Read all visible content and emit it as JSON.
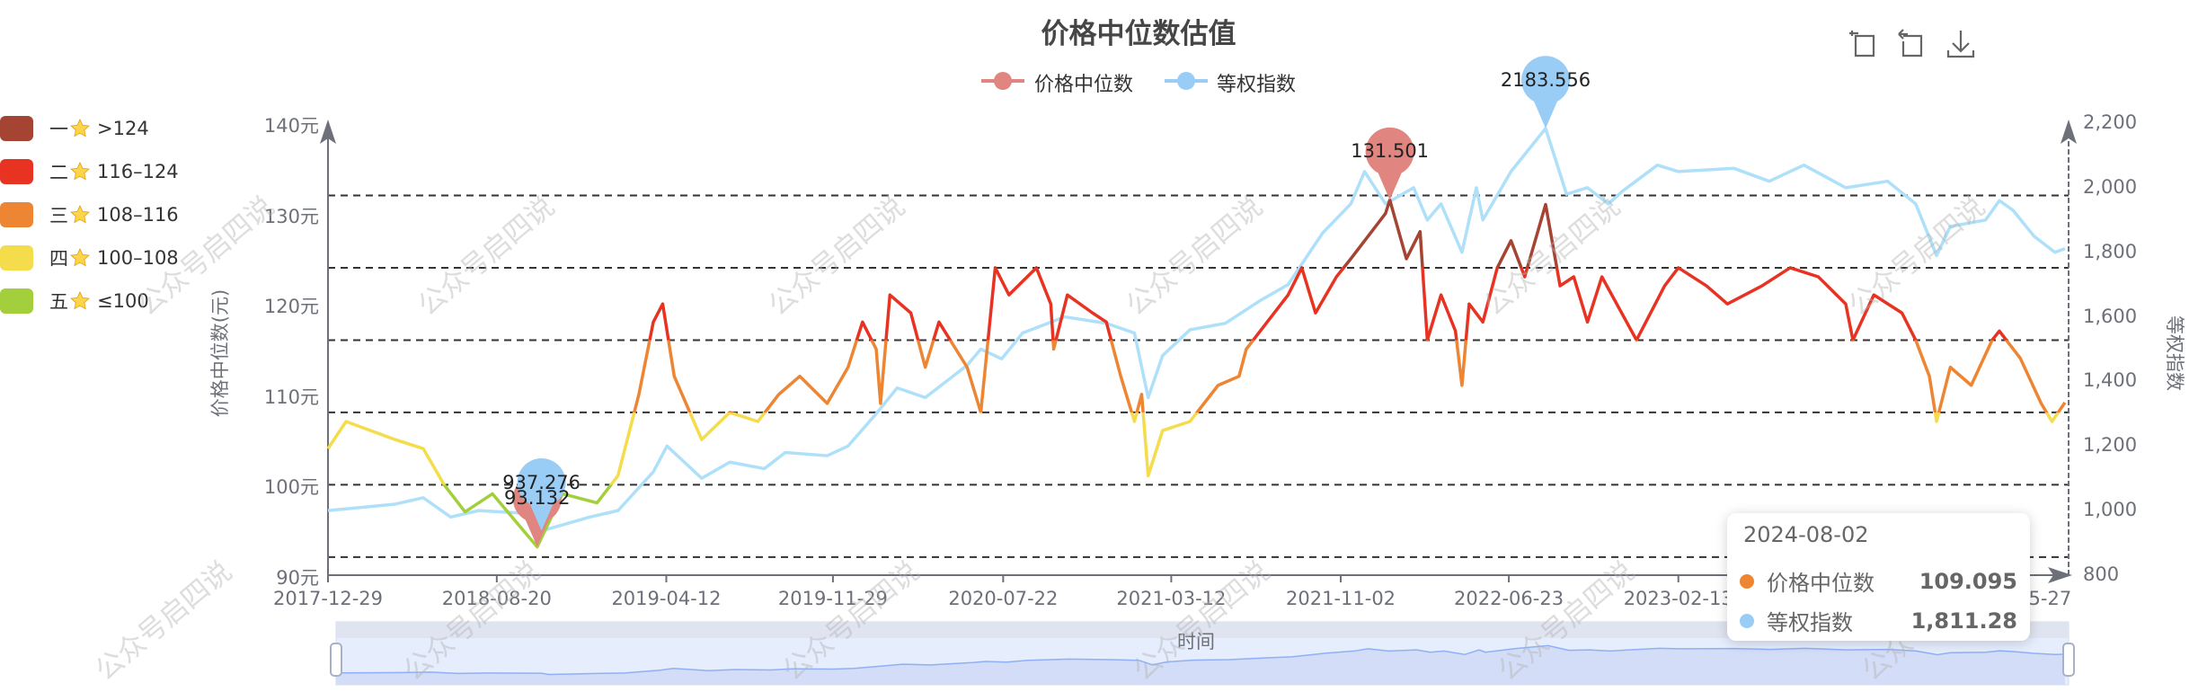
{
  "title": "价格中位数估值",
  "legend": [
    {
      "name": "价格中位数",
      "color": "#e0857f"
    },
    {
      "name": "等权指数",
      "color": "#9acdf5"
    }
  ],
  "toolbox": [
    {
      "icon": "data-zoom-icon"
    },
    {
      "icon": "zoom-reset-icon"
    },
    {
      "icon": "download-icon"
    }
  ],
  "visual_map": [
    {
      "rank": "一",
      "range": ">124",
      "color": "#a54432"
    },
    {
      "rank": "二",
      "range": "116–124",
      "color": "#e83323"
    },
    {
      "rank": "三",
      "range": "108–116",
      "color": "#ed8532"
    },
    {
      "rank": "四",
      "range": "100–108",
      "color": "#f5dc4a"
    },
    {
      "rank": "五",
      "range": "≤100",
      "color": "#a3cf3c"
    }
  ],
  "watermark": "公众号启四说",
  "datazoom": {
    "label": "时间",
    "start_percent": 0,
    "end_percent": 100
  },
  "tooltip": {
    "date": "2024-08-02",
    "rows": [
      {
        "name": "价格中位数",
        "value": "109.095",
        "color": "#ed8532"
      },
      {
        "name": "等权指数",
        "value": "1,811.28",
        "color": "#9acdf5"
      }
    ]
  },
  "chart_data": {
    "type": "line",
    "title": "价格中位数估值",
    "xlabel": "时间",
    "ylabel_left": "价格中位数(元)",
    "ylabel_right": "等权指数",
    "x_ticks": [
      "2017-12-29",
      "2018-08-20",
      "2019-04-12",
      "2019-11-29",
      "2020-07-22",
      "2021-03-12",
      "2021-11-02",
      "2022-06-23",
      "2023-02-13",
      "2024-05-27"
    ],
    "xlim": [
      "2017-12-29",
      "2024-08-07"
    ],
    "y_left": {
      "ticks": [
        "90元",
        "100元",
        "110元",
        "120元",
        "130元",
        "140元"
      ],
      "range": [
        90,
        140
      ]
    },
    "y_right": {
      "ticks": [
        "800",
        "1,000",
        "1,200",
        "1,400",
        "1,600",
        "1,800",
        "2,000",
        "2,200"
      ],
      "range": [
        800,
        2200
      ]
    },
    "reference_lines": [
      132,
      124,
      116,
      108,
      100,
      92
    ],
    "grid": false,
    "legend_position": "top",
    "series": [
      {
        "name": "价格中位数",
        "axis": "left",
        "points": [
          [
            "2017-12-29",
            104
          ],
          [
            "2018-01-23",
            107
          ],
          [
            "2018-04-01",
            105
          ],
          [
            "2018-05-10",
            104
          ],
          [
            "2018-06-08",
            100
          ],
          [
            "2018-07-07",
            97
          ],
          [
            "2018-08-14",
            99
          ],
          [
            "2018-10-15",
            93.132
          ],
          [
            "2018-11-19",
            99
          ],
          [
            "2019-01-06",
            98
          ],
          [
            "2019-02-04",
            101
          ],
          [
            "2019-03-05",
            110
          ],
          [
            "2019-03-25",
            118
          ],
          [
            "2019-04-07",
            120
          ],
          [
            "2019-04-23",
            112
          ],
          [
            "2019-05-31",
            105
          ],
          [
            "2019-07-09",
            108
          ],
          [
            "2019-08-17",
            107
          ],
          [
            "2019-09-15",
            110
          ],
          [
            "2019-10-14",
            112
          ],
          [
            "2019-11-21",
            109
          ],
          [
            "2019-12-20",
            113
          ],
          [
            "2020-01-09",
            118
          ],
          [
            "2020-01-28",
            115
          ],
          [
            "2020-02-03",
            109
          ],
          [
            "2020-02-16",
            121
          ],
          [
            "2020-03-16",
            119
          ],
          [
            "2020-04-05",
            113
          ],
          [
            "2020-04-24",
            118
          ],
          [
            "2020-06-02",
            113
          ],
          [
            "2020-06-21",
            108
          ],
          [
            "2020-07-11",
            124
          ],
          [
            "2020-07-30",
            121
          ],
          [
            "2020-09-06",
            124
          ],
          [
            "2020-09-26",
            120
          ],
          [
            "2020-09-30",
            115
          ],
          [
            "2020-10-19",
            121
          ],
          [
            "2020-11-23",
            119
          ],
          [
            "2020-12-12",
            118
          ],
          [
            "2021-01-01",
            112
          ],
          [
            "2021-01-20",
            107
          ],
          [
            "2021-01-30",
            110
          ],
          [
            "2021-02-08",
            101
          ],
          [
            "2021-02-28",
            106
          ],
          [
            "2021-04-07",
            107
          ],
          [
            "2021-05-16",
            111
          ],
          [
            "2021-06-14",
            112
          ],
          [
            "2021-06-24",
            115
          ],
          [
            "2021-07-23",
            118
          ],
          [
            "2021-08-21",
            121
          ],
          [
            "2021-09-09",
            124
          ],
          [
            "2021-09-28",
            119
          ],
          [
            "2021-10-27",
            123
          ],
          [
            "2021-11-16",
            125
          ],
          [
            "2022-01-03",
            130
          ],
          [
            "2022-01-09",
            131.501
          ],
          [
            "2022-02-01",
            125
          ],
          [
            "2022-02-20",
            128
          ],
          [
            "2022-03-02",
            116
          ],
          [
            "2022-03-21",
            121
          ],
          [
            "2022-04-10",
            117
          ],
          [
            "2022-04-19",
            111
          ],
          [
            "2022-04-29",
            120
          ],
          [
            "2022-05-18",
            118
          ],
          [
            "2022-06-07",
            124
          ],
          [
            "2022-06-26",
            127
          ],
          [
            "2022-07-15",
            123
          ],
          [
            "2022-08-13",
            131
          ],
          [
            "2022-09-02",
            122
          ],
          [
            "2022-09-21",
            123
          ],
          [
            "2022-10-10",
            118
          ],
          [
            "2022-10-30",
            123
          ],
          [
            "2022-12-17",
            116
          ],
          [
            "2023-01-25",
            122
          ],
          [
            "2023-02-13",
            124
          ],
          [
            "2023-03-24",
            122
          ],
          [
            "2023-04-22",
            120
          ],
          [
            "2023-06-09",
            122
          ],
          [
            "2023-07-18",
            124
          ],
          [
            "2023-08-26",
            123
          ],
          [
            "2023-10-03",
            120
          ],
          [
            "2023-10-13",
            116
          ],
          [
            "2023-11-11",
            121
          ],
          [
            "2023-12-20",
            119
          ],
          [
            "2024-01-08",
            116
          ],
          [
            "2024-01-27",
            112
          ],
          [
            "2024-02-06",
            107
          ],
          [
            "2024-02-25",
            113
          ],
          [
            "2024-03-25",
            111
          ],
          [
            "2024-04-23",
            116
          ],
          [
            "2024-05-03",
            117
          ],
          [
            "2024-06-01",
            114
          ],
          [
            "2024-06-30",
            109
          ],
          [
            "2024-07-15",
            107
          ],
          [
            "2024-08-02",
            109.095
          ]
        ],
        "max": {
          "date": "2022-01-09",
          "value": 131.501,
          "label": "131.501"
        },
        "min": {
          "date": "2018-10-15",
          "value": 93.132,
          "label": "93.132"
        }
      },
      {
        "name": "等权指数",
        "axis": "right",
        "color": "#aee0f9",
        "points": [
          [
            "2017-12-29",
            1000
          ],
          [
            "2018-04-01",
            1020
          ],
          [
            "2018-05-10",
            1040
          ],
          [
            "2018-06-17",
            980
          ],
          [
            "2018-07-26",
            1000
          ],
          [
            "2018-10-11",
            990
          ],
          [
            "2018-10-21",
            937.276
          ],
          [
            "2018-12-27",
            980
          ],
          [
            "2019-02-04",
            1000
          ],
          [
            "2019-03-25",
            1120
          ],
          [
            "2019-04-13",
            1200
          ],
          [
            "2019-05-31",
            1100
          ],
          [
            "2019-07-09",
            1150
          ],
          [
            "2019-08-26",
            1130
          ],
          [
            "2019-09-24",
            1180
          ],
          [
            "2019-11-21",
            1170
          ],
          [
            "2019-12-20",
            1200
          ],
          [
            "2020-01-28",
            1300
          ],
          [
            "2020-02-26",
            1380
          ],
          [
            "2020-04-05",
            1350
          ],
          [
            "2020-06-02",
            1450
          ],
          [
            "2020-06-21",
            1500
          ],
          [
            "2020-07-20",
            1470
          ],
          [
            "2020-08-18",
            1550
          ],
          [
            "2020-10-15",
            1600
          ],
          [
            "2020-12-12",
            1580
          ],
          [
            "2021-01-20",
            1550
          ],
          [
            "2021-02-08",
            1350
          ],
          [
            "2021-02-28",
            1480
          ],
          [
            "2021-04-07",
            1560
          ],
          [
            "2021-05-26",
            1580
          ],
          [
            "2021-07-13",
            1650
          ],
          [
            "2021-08-21",
            1700
          ],
          [
            "2021-10-08",
            1860
          ],
          [
            "2021-11-16",
            1950
          ],
          [
            "2021-12-05",
            2050
          ],
          [
            "2022-01-03",
            1950
          ],
          [
            "2022-02-11",
            2000
          ],
          [
            "2022-03-02",
            1900
          ],
          [
            "2022-03-21",
            1950
          ],
          [
            "2022-04-19",
            1800
          ],
          [
            "2022-05-09",
            2000
          ],
          [
            "2022-05-18",
            1900
          ],
          [
            "2022-06-26",
            2050
          ],
          [
            "2022-08-13",
            2183.556
          ],
          [
            "2022-09-11",
            1980
          ],
          [
            "2022-10-10",
            2000
          ],
          [
            "2022-11-08",
            1950
          ],
          [
            "2022-11-28",
            1990
          ],
          [
            "2023-01-15",
            2070
          ],
          [
            "2023-02-13",
            2050
          ],
          [
            "2023-05-01",
            2060
          ],
          [
            "2023-06-19",
            2020
          ],
          [
            "2023-08-06",
            2070
          ],
          [
            "2023-10-03",
            2000
          ],
          [
            "2023-11-30",
            2020
          ],
          [
            "2024-01-08",
            1950
          ],
          [
            "2024-02-06",
            1790
          ],
          [
            "2024-02-25",
            1880
          ],
          [
            "2024-04-14",
            1900
          ],
          [
            "2024-05-03",
            1960
          ],
          [
            "2024-05-22",
            1930
          ],
          [
            "2024-06-20",
            1850
          ],
          [
            "2024-07-19",
            1800
          ],
          [
            "2024-08-02",
            1811.28
          ]
        ],
        "max": {
          "date": "2022-08-13",
          "value": 2183.556,
          "label": "2183.556"
        },
        "min": {
          "date": "2018-10-21",
          "value": 937.276,
          "label": "937.276"
        }
      }
    ]
  }
}
